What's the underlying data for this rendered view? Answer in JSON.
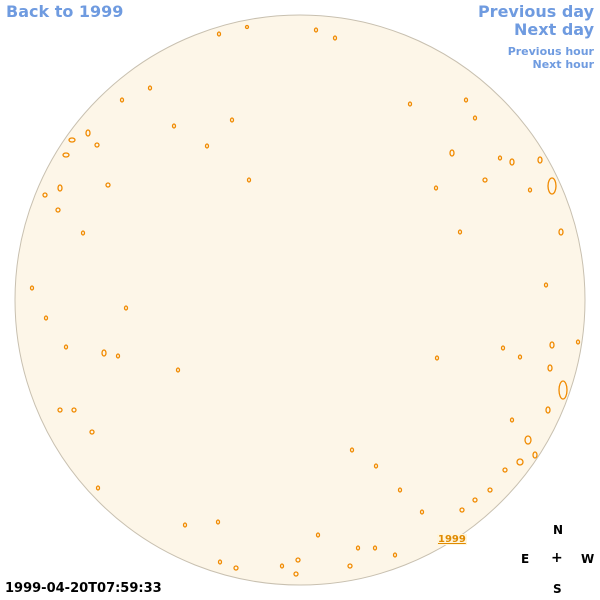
{
  "nav": {
    "back": "Back to 1999",
    "previous_day": "Previous day",
    "next_day": "Next day",
    "previous_hour": "Previous hour",
    "next_hour": "Next hour"
  },
  "timestamp": "1999-04-20T07:59:33",
  "year_link": "1999",
  "compass": {
    "n": "N",
    "e": "E",
    "w": "W",
    "s": "S",
    "center": "+"
  },
  "colors": {
    "disk_fill": "#fdf6e8",
    "disk_stroke": "#c8c0b0",
    "feature": "#f08a00",
    "link": "#6f9be0"
  }
}
